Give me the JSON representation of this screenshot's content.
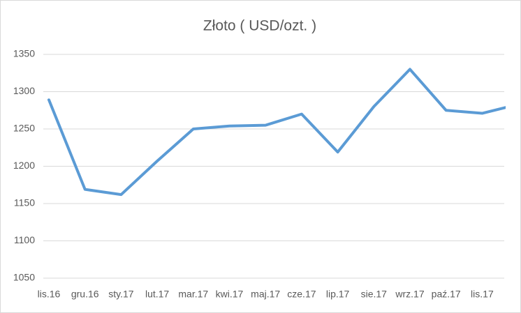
{
  "chart_data": {
    "type": "line",
    "title": "Złoto ( USD/ozt. )",
    "categories": [
      "lis.16",
      "gru.16",
      "sty.17",
      "lut.17",
      "mar.17",
      "kwi.17",
      "maj.17",
      "cze.17",
      "lip.17",
      "sie.17",
      "wrz.17",
      "paź.17",
      "lis.17",
      null
    ],
    "series": [
      {
        "name": "Złoto",
        "color": "#5b9bd5",
        "values": [
          1289,
          1169,
          1162,
          1207,
          1250,
          1254,
          1255,
          1270,
          1219,
          1280,
          1330,
          1275,
          1271,
          1283
        ]
      }
    ],
    "ylim": [
      1050,
      1350
    ],
    "yticks": [
      1050,
      1100,
      1150,
      1200,
      1250,
      1300,
      1350
    ],
    "grid": true
  }
}
